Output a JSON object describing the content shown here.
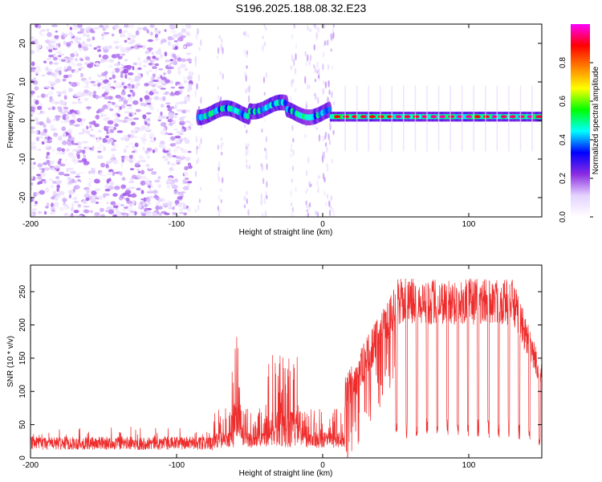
{
  "title": "S196.2025.188.08.32.E23",
  "chart_data": [
    {
      "type": "heatmap",
      "xlabel": "Height of straight line (km)",
      "ylabel": "Frequency (Hz)",
      "xlim": [
        -200,
        150
      ],
      "ylim": [
        -25,
        25
      ],
      "xticks": [
        -200,
        -100,
        0,
        100
      ],
      "yticks": [
        -20,
        -10,
        0,
        10,
        20
      ],
      "colorbar": {
        "label": "Normalized spectral amplitude",
        "range": [
          0,
          1
        ],
        "ticks": [
          "0.0",
          "0.2",
          "0.4",
          "0.6",
          "0.8"
        ],
        "colormap": [
          "#ffffff",
          "#e4d2ff",
          "#8a2be2",
          "#0000ff",
          "#00ffff",
          "#00ff00",
          "#ffff00",
          "#ff8000",
          "#ff0000",
          "#ff00ff"
        ]
      },
      "regions": [
        {
          "x": [
            -200,
            -90
          ],
          "description_level": "noise"
        },
        {
          "x": [
            -85,
            5
          ],
          "freq_center_hz": 2,
          "level": 0.45
        },
        {
          "x": [
            5,
            150
          ],
          "freq_center_hz": 1,
          "level": 0.9
        }
      ],
      "grid": false
    },
    {
      "type": "line",
      "xlabel": "Height of straight line (km)",
      "ylabel": "SNR (10 * v/v)",
      "xlim": [
        -200,
        150
      ],
      "ylim": [
        0,
        290
      ],
      "xticks": [
        -200,
        -100,
        0,
        100
      ],
      "yticks": [
        0,
        50,
        100,
        150,
        200,
        250
      ],
      "line_color": "#ee2c2c",
      "grid": false
    }
  ]
}
